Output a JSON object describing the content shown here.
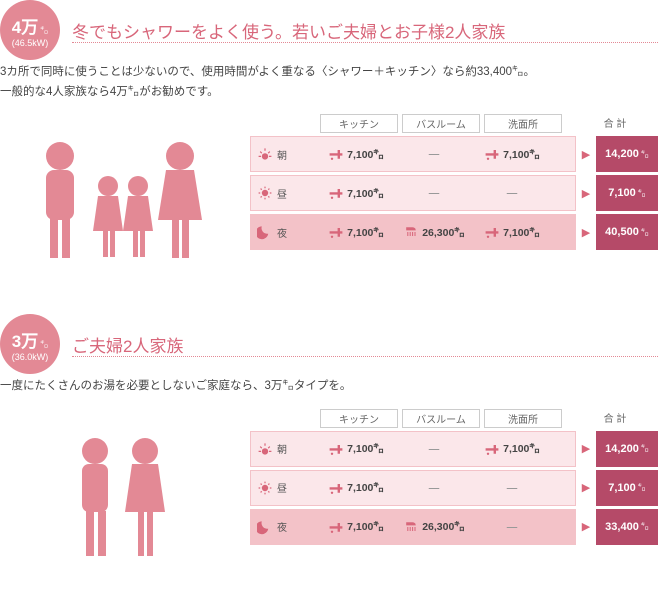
{
  "colors": {
    "pink": "#e38995",
    "pink_light": "#fbe7ea",
    "pink_mid": "#f3c2c8",
    "pink_dark": "#d8667a",
    "magenta": "#b54a68",
    "text": "#555555"
  },
  "sections": [
    {
      "badge_big": "4万",
      "badge_unit": "㌔",
      "badge_sub": "(46.5kW)",
      "headline": "冬でもシャワーをよく使う。若いご夫婦とお子様2人家族",
      "desc1": "3カ所で同時に使うことは少ないので、使用時間がよく重なる〈シャワー＋キッチン〉なら約33,400㌔。",
      "desc2": "一般的な4人家族なら4万㌔がお勧めです。",
      "people": "family4",
      "cols": {
        "k": "キッチン",
        "b": "バスルーム",
        "w": "洗面所",
        "t": "合 計"
      },
      "rows": [
        {
          "tod": "朝",
          "icon": "sunrise",
          "k": "7,100㌔",
          "b": null,
          "w": "7,100㌔",
          "total": "14,200",
          "total_unit": "㌔"
        },
        {
          "tod": "昼",
          "icon": "sun",
          "k": "7,100㌔",
          "b": null,
          "w": null,
          "total": "7,100",
          "total_unit": "㌔"
        },
        {
          "tod": "夜",
          "icon": "moon",
          "k": "7,100㌔",
          "b": "26,300㌔",
          "b_icon": "shower",
          "w": "7,100㌔",
          "total": "40,500",
          "total_unit": "㌔",
          "highlight": true
        }
      ]
    },
    {
      "badge_big": "3万",
      "badge_unit": "㌔",
      "badge_sub": "(36.0kW)",
      "headline": "ご夫婦2人家族",
      "desc1": "一度にたくさんのお湯を必要としないご家庭なら、3万㌔タイプを。",
      "desc2": "",
      "people": "couple2",
      "cols": {
        "k": "キッチン",
        "b": "バスルーム",
        "w": "洗面所",
        "t": "合 計"
      },
      "rows": [
        {
          "tod": "朝",
          "icon": "sunrise",
          "k": "7,100㌔",
          "b": null,
          "w": "7,100㌔",
          "total": "14,200",
          "total_unit": "㌔"
        },
        {
          "tod": "昼",
          "icon": "sun",
          "k": "7,100㌔",
          "b": null,
          "w": null,
          "total": "7,100",
          "total_unit": "㌔"
        },
        {
          "tod": "夜",
          "icon": "moon",
          "k": "7,100㌔",
          "b": "26,300㌔",
          "b_icon": "shower",
          "w": null,
          "total": "33,400",
          "total_unit": "㌔",
          "highlight": true
        }
      ]
    }
  ]
}
